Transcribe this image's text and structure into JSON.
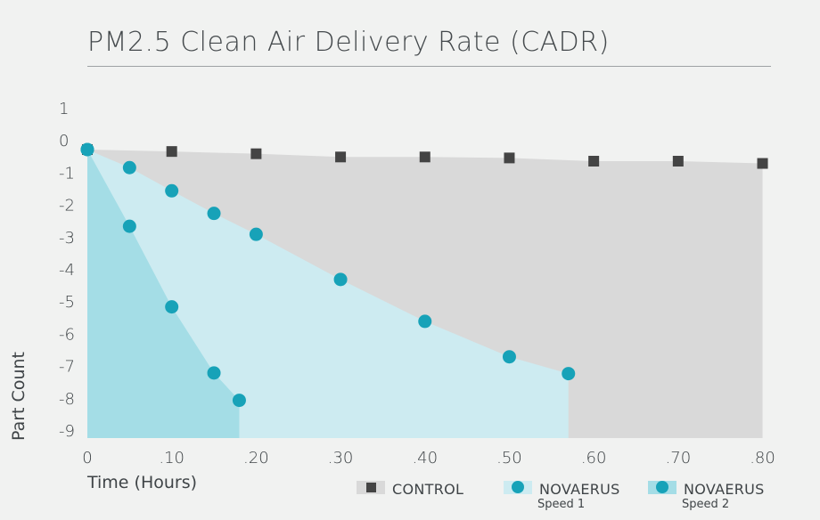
{
  "chart_data": {
    "type": "area",
    "title": "PM2.5 Clean Air Delivery Rate (CADR)",
    "xlabel": "Time (Hours)",
    "ylabel": "Part Count",
    "xlim": [
      0,
      0.81
    ],
    "ylim": [
      -9,
      1
    ],
    "x_ticks": [
      "0",
      ".10",
      ".20",
      ".30",
      ".40",
      ".50",
      ".60",
      ".70",
      ".80"
    ],
    "x_tick_values": [
      0,
      0.1,
      0.2,
      0.3,
      0.4,
      0.5,
      0.6,
      0.7,
      0.8
    ],
    "y_ticks": [
      "1",
      "0",
      "-1",
      "-2",
      "-3",
      "-4",
      "-5",
      "-6",
      "-7",
      "-8",
      "-9"
    ],
    "y_tick_values": [
      1,
      0,
      -1,
      -2,
      -3,
      -4,
      -5,
      -6,
      -7,
      -8,
      -9
    ],
    "series": [
      {
        "name": "CONTROL",
        "marker": "square",
        "marker_color": "#444444",
        "fill_color": "#d9d9d9",
        "x": [
          0,
          0.1,
          0.2,
          0.3,
          0.4,
          0.5,
          0.6,
          0.7,
          0.8
        ],
        "y": [
          -0.27,
          -0.33,
          -0.4,
          -0.5,
          -0.5,
          -0.53,
          -0.63,
          -0.63,
          -0.7
        ]
      },
      {
        "name": "NOVAERUS",
        "sub": "Speed 1",
        "marker": "circle",
        "marker_color": "#17a2b8",
        "fill_color": "#cdebf1",
        "x": [
          0,
          0.05,
          0.1,
          0.15,
          0.2,
          0.3,
          0.4,
          0.5,
          0.57
        ],
        "y": [
          -0.27,
          -0.83,
          -1.55,
          -2.25,
          -2.9,
          -4.3,
          -5.6,
          -6.7,
          -7.22
        ]
      },
      {
        "name": "NOVAERUS",
        "sub": "Speed 2",
        "marker": "circle",
        "marker_color": "#17a2b8",
        "fill_color": "#a4dde6",
        "x": [
          0,
          0.05,
          0.1,
          0.15,
          0.18
        ],
        "y": [
          -0.27,
          -2.65,
          -5.15,
          -7.2,
          -8.05
        ]
      }
    ],
    "legend": {
      "placement": "bottom-right",
      "items": [
        {
          "label": "CONTROL",
          "sub": ""
        },
        {
          "label": "NOVAERUS",
          "sub": "Speed 1"
        },
        {
          "label": "NOVAERUS",
          "sub": "Speed 2"
        }
      ]
    },
    "grid": false
  }
}
